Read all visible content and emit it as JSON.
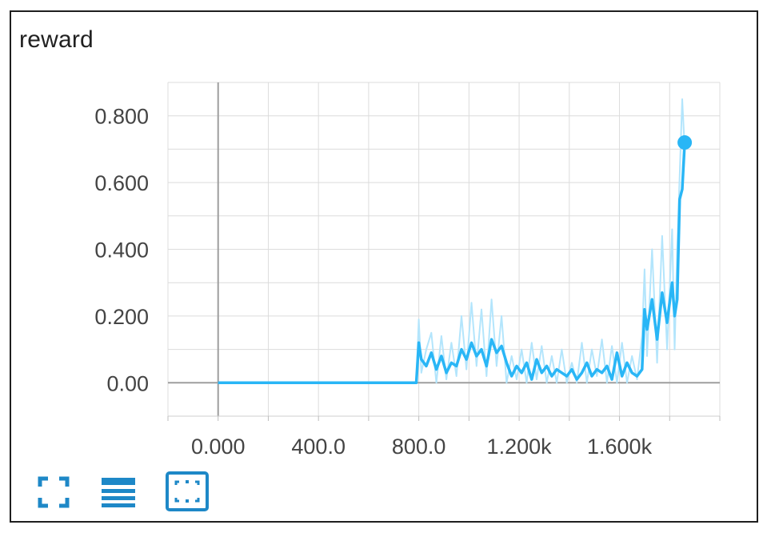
{
  "chart_data": {
    "type": "line",
    "title": "reward",
    "xlabel": "",
    "ylabel": "",
    "xlim": [
      -200,
      2000
    ],
    "ylim": [
      -0.1,
      0.9
    ],
    "x_ticks": [
      0,
      400,
      800,
      1200,
      1600
    ],
    "x_tick_labels": [
      "0.000",
      "400.0",
      "800.0",
      "1.200k",
      "1.600k"
    ],
    "y_ticks": [
      0,
      0.2,
      0.4,
      0.6,
      0.8
    ],
    "y_tick_labels": [
      "0.00",
      "0.200",
      "0.400",
      "0.600",
      "0.800"
    ],
    "grid": true,
    "series": [
      {
        "color": "#29b6f6",
        "raw_color": "#b3e5fc",
        "x": [
          0,
          200,
          400,
          600,
          790,
          800,
          810,
          830,
          850,
          870,
          890,
          910,
          930,
          950,
          970,
          990,
          1010,
          1030,
          1050,
          1070,
          1090,
          1110,
          1130,
          1150,
          1170,
          1190,
          1210,
          1230,
          1250,
          1270,
          1290,
          1310,
          1330,
          1350,
          1370,
          1390,
          1410,
          1430,
          1450,
          1470,
          1490,
          1510,
          1530,
          1550,
          1570,
          1590,
          1610,
          1630,
          1650,
          1670,
          1690,
          1700,
          1710,
          1730,
          1750,
          1770,
          1790,
          1810,
          1820,
          1830,
          1840,
          1850,
          1860
        ],
        "y": [
          0,
          0,
          0,
          0,
          0,
          0.12,
          0.07,
          0.05,
          0.09,
          0.04,
          0.08,
          0.03,
          0.06,
          0.05,
          0.1,
          0.07,
          0.12,
          0.08,
          0.1,
          0.05,
          0.13,
          0.09,
          0.11,
          0.06,
          0.02,
          0.05,
          0.03,
          0.06,
          0.01,
          0.07,
          0.03,
          0.05,
          0.02,
          0.04,
          0.03,
          0.02,
          0.04,
          0.01,
          0.03,
          0.06,
          0.02,
          0.04,
          0.03,
          0.05,
          0.01,
          0.09,
          0.02,
          0.06,
          0.03,
          0.02,
          0.04,
          0.22,
          0.16,
          0.25,
          0.13,
          0.27,
          0.18,
          0.3,
          0.2,
          0.25,
          0.55,
          0.58,
          0.72
        ],
        "raw_y": [
          0,
          0,
          0,
          0,
          0,
          0.19,
          0.03,
          0.1,
          0.15,
          0.0,
          0.14,
          0.01,
          0.12,
          0.02,
          0.2,
          0.04,
          0.24,
          0.05,
          0.22,
          0.02,
          0.25,
          0.05,
          0.2,
          0.0,
          0.08,
          0.01,
          0.1,
          0.0,
          0.12,
          0.01,
          0.11,
          0.0,
          0.08,
          0.0,
          0.1,
          0.0,
          0.06,
          0.0,
          0.12,
          0.0,
          0.1,
          0.02,
          0.13,
          0.0,
          0.11,
          0.0,
          0.12,
          0.0,
          0.08,
          0.01,
          0.14,
          0.34,
          0.08,
          0.4,
          0.06,
          0.44,
          0.1,
          0.46,
          0.1,
          0.4,
          0.62,
          0.85,
          0.7
        ],
        "last_point": {
          "x": 1860,
          "y": 0.72
        }
      }
    ]
  },
  "toolbar": {
    "icons": [
      "expand-icon",
      "list-icon",
      "fit-domain-icon"
    ],
    "accent_color": "#1e88c7"
  }
}
